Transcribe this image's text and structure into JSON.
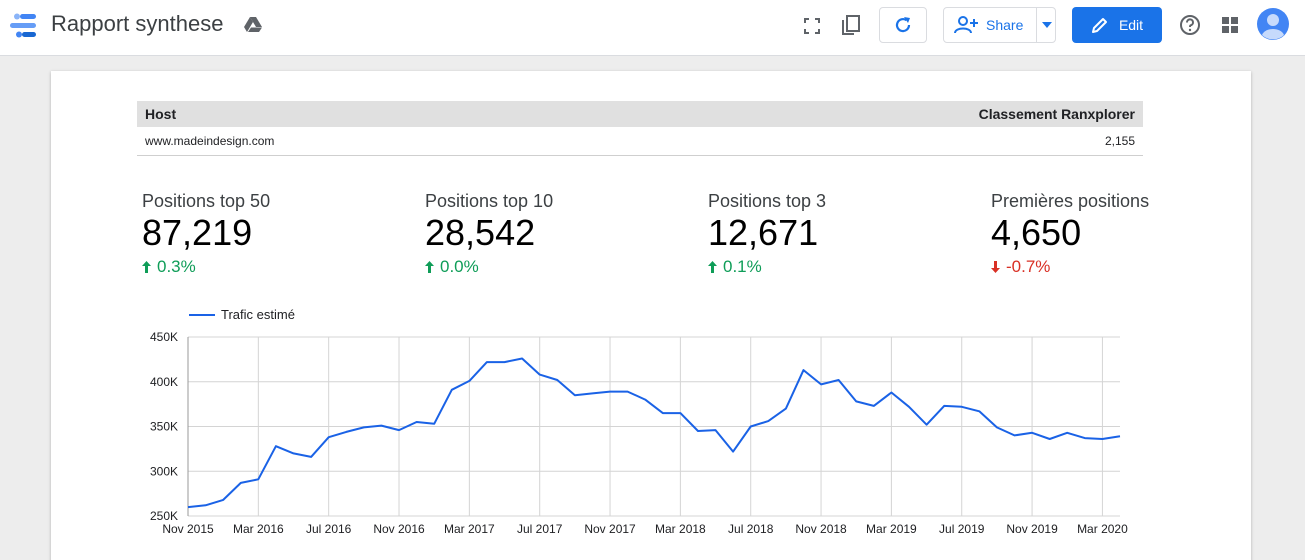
{
  "header": {
    "title": "Rapport synthese",
    "share_label": "Share",
    "edit_label": "Edit"
  },
  "table": {
    "columns": [
      "Host",
      "Classement Ranxplorer"
    ],
    "rows": [
      [
        "www.madeindesign.com",
        "2,155"
      ]
    ]
  },
  "kpis": [
    {
      "label": "Positions top 50",
      "value": "87,219",
      "delta": "0.3%",
      "trend": "up"
    },
    {
      "label": "Positions top 10",
      "value": "28,542",
      "delta": "0.0%",
      "trend": "up"
    },
    {
      "label": "Positions top 3",
      "value": "12,671",
      "delta": "0.1%",
      "trend": "up"
    },
    {
      "label": "Premières positions",
      "value": "4,650",
      "delta": "-0.7%",
      "trend": "down"
    }
  ],
  "colors": {
    "accent": "#1a73e8",
    "positive": "#0f9d58",
    "negative": "#d93025",
    "series": "#1a62e6"
  },
  "chart_data": {
    "type": "line",
    "title": "",
    "legend": "top-left",
    "grid": true,
    "series": [
      {
        "name": "Trafic estimé",
        "values": [
          260000,
          262000,
          268000,
          287000,
          291000,
          328000,
          320000,
          316000,
          338000,
          344000,
          349000,
          351000,
          346000,
          355000,
          353000,
          391000,
          401000,
          422000,
          422000,
          426000,
          408000,
          402000,
          385000,
          387000,
          389000,
          389000,
          380000,
          365000,
          365000,
          345000,
          346000,
          322000,
          350000,
          356000,
          370000,
          413000,
          397000,
          402000,
          378000,
          373000,
          388000,
          372000,
          352000,
          373000,
          372000,
          367000,
          349000,
          340000,
          343000,
          336000,
          343000,
          337000,
          336000,
          339000
        ]
      }
    ],
    "x_tick_labels": [
      "Nov 2015",
      "Mar 2016",
      "Jul 2016",
      "Nov 2016",
      "Mar 2017",
      "Jul 2017",
      "Nov 2017",
      "Mar 2018",
      "Jul 2018",
      "Nov 2018",
      "Mar 2019",
      "Jul 2019",
      "Nov 2019",
      "Mar 2020"
    ],
    "y_tick_labels": [
      "450K",
      "400K",
      "350K",
      "300K",
      "250K"
    ],
    "ylim": [
      250000,
      450000
    ]
  }
}
